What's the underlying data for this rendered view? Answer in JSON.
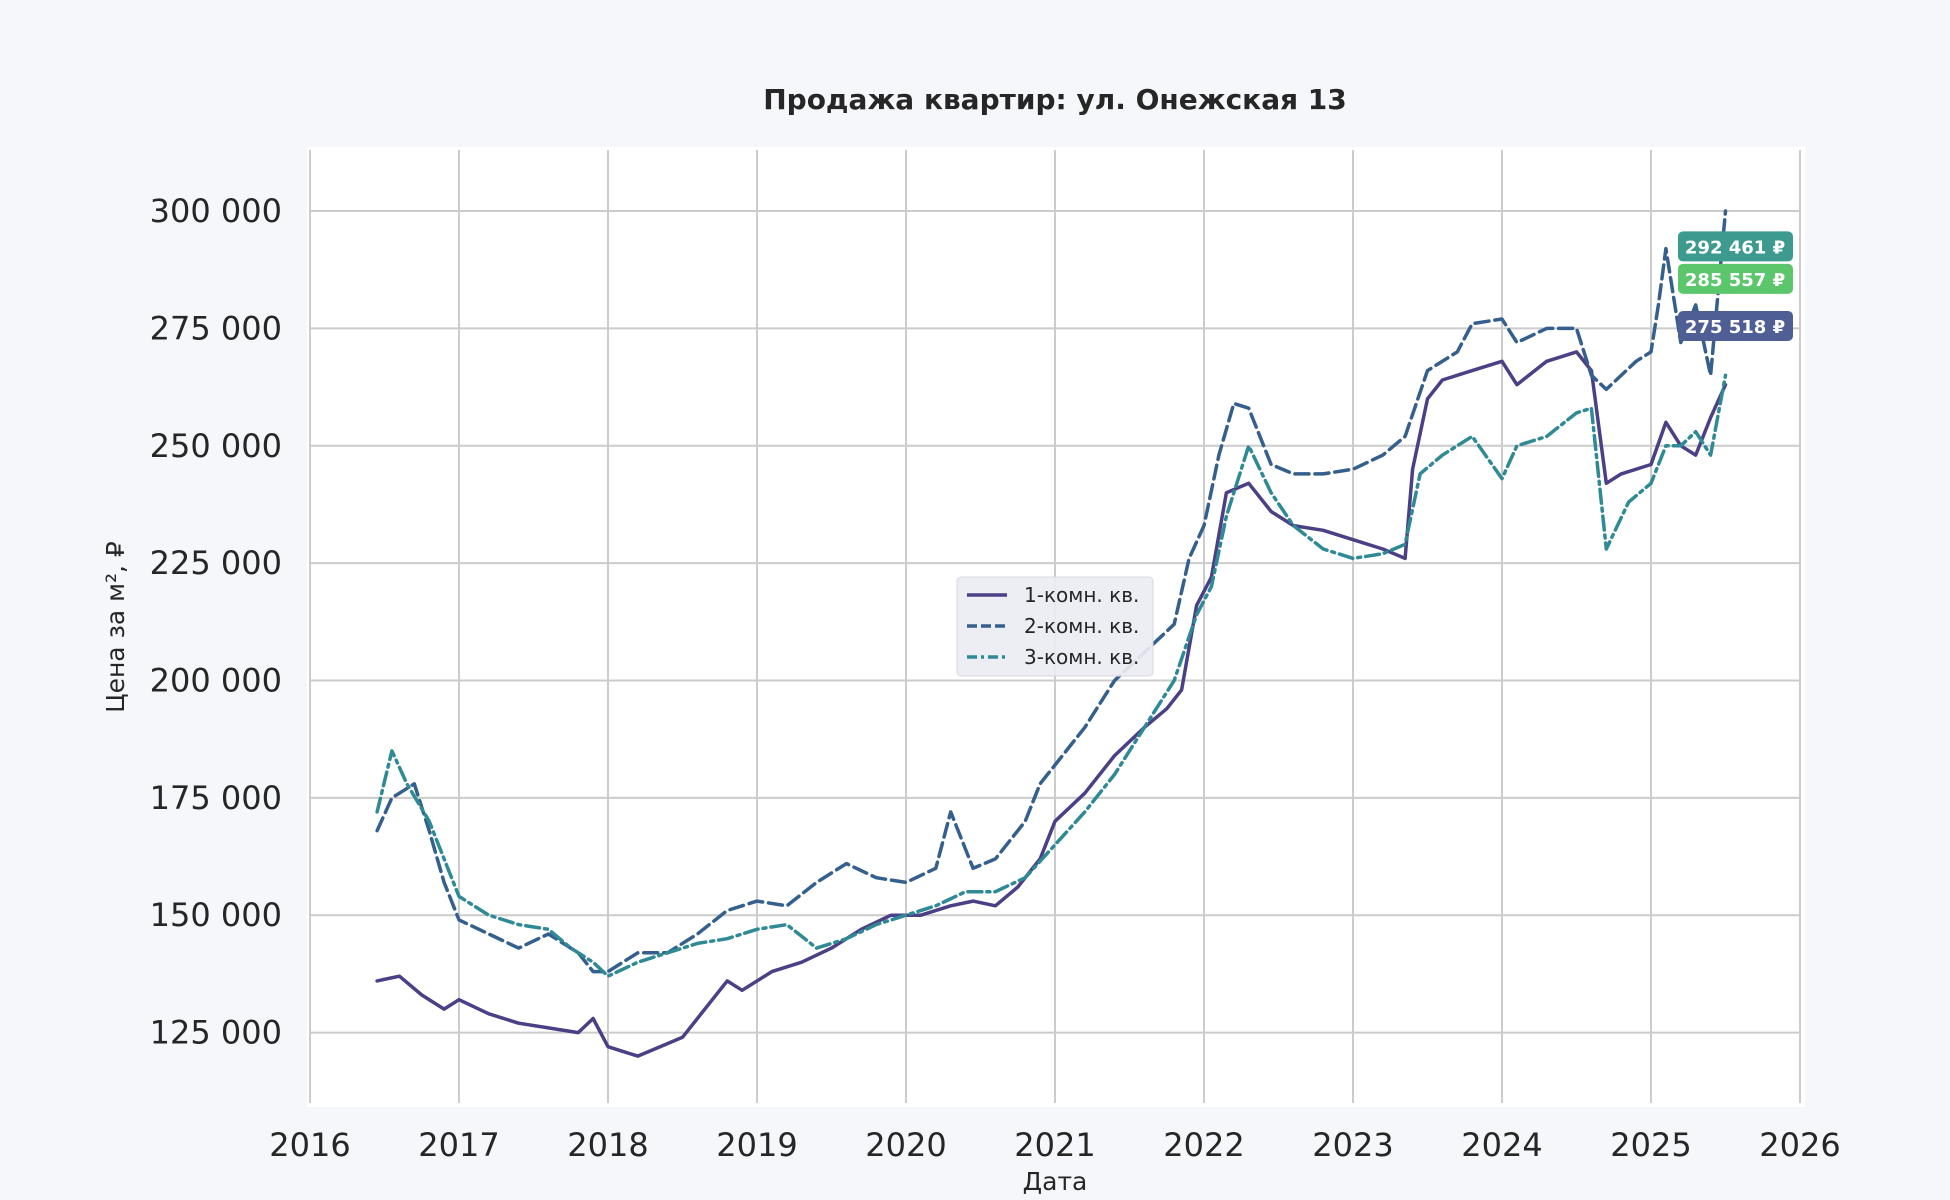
{
  "chart_data": {
    "type": "line",
    "title": "Продажа квартир: ул. Онежская 13",
    "xlabel": "Дата",
    "ylabel": "Цена за м², ₽",
    "xlim": [
      2016,
      2026
    ],
    "ylim": [
      110000,
      313000
    ],
    "x_ticks": [
      "2016",
      "2017",
      "2018",
      "2019",
      "2020",
      "2021",
      "2022",
      "2023",
      "2024",
      "2025",
      "2026"
    ],
    "y_ticks": [
      {
        "value": 125000,
        "label": "125 000"
      },
      {
        "value": 150000,
        "label": "150 000"
      },
      {
        "value": 175000,
        "label": "175 000"
      },
      {
        "value": 200000,
        "label": "200 000"
      },
      {
        "value": 225000,
        "label": "225 000"
      },
      {
        "value": 250000,
        "label": "250 000"
      },
      {
        "value": 275000,
        "label": "275 000"
      },
      {
        "value": 300000,
        "label": "300 000"
      }
    ],
    "grid": true,
    "legend_position": "center",
    "series": [
      {
        "name": "1-комн. кв.",
        "color": "#4b3f86",
        "dash": "solid",
        "x": [
          2016.45,
          2016.6,
          2016.75,
          2016.9,
          2017.0,
          2017.2,
          2017.4,
          2017.6,
          2017.8,
          2017.9,
          2018.0,
          2018.1,
          2018.2,
          2018.35,
          2018.5,
          2018.7,
          2018.8,
          2018.9,
          2019.1,
          2019.3,
          2019.5,
          2019.7,
          2019.9,
          2020.1,
          2020.3,
          2020.45,
          2020.6,
          2020.75,
          2020.9,
          2021.0,
          2021.2,
          2021.4,
          2021.6,
          2021.75,
          2021.85,
          2021.95,
          2022.05,
          2022.15,
          2022.3,
          2022.45,
          2022.6,
          2022.8,
          2023.0,
          2023.2,
          2023.35,
          2023.4,
          2023.5,
          2023.6,
          2023.8,
          2024.0,
          2024.1,
          2024.3,
          2024.5,
          2024.6,
          2024.7,
          2024.8,
          2025.0,
          2025.1,
          2025.2,
          2025.3,
          2025.4,
          2025.5
        ],
        "y": [
          136000,
          137000,
          133000,
          130000,
          132000,
          129000,
          127000,
          126000,
          125000,
          128000,
          122000,
          121000,
          120000,
          122000,
          124000,
          132000,
          136000,
          134000,
          138000,
          140000,
          143000,
          147000,
          150000,
          150000,
          152000,
          153000,
          152000,
          156000,
          162000,
          170000,
          176000,
          184000,
          190000,
          194000,
          198000,
          216000,
          222000,
          240000,
          242000,
          236000,
          233000,
          232000,
          230000,
          228000,
          226000,
          245000,
          260000,
          264000,
          266000,
          268000,
          263000,
          268000,
          270000,
          266000,
          242000,
          244000,
          246000,
          255000,
          250000,
          248000,
          256000,
          263000
        ]
      },
      {
        "name": "2-комн. кв.",
        "color": "#355f8c",
        "dash": "dashed",
        "x": [
          2016.45,
          2016.55,
          2016.7,
          2016.8,
          2016.9,
          2017.0,
          2017.2,
          2017.4,
          2017.6,
          2017.8,
          2017.9,
          2018.0,
          2018.2,
          2018.4,
          2018.6,
          2018.8,
          2019.0,
          2019.2,
          2019.4,
          2019.6,
          2019.8,
          2020.0,
          2020.2,
          2020.3,
          2020.45,
          2020.6,
          2020.8,
          2020.9,
          2021.0,
          2021.2,
          2021.4,
          2021.6,
          2021.8,
          2021.9,
          2022.0,
          2022.1,
          2022.2,
          2022.3,
          2022.45,
          2022.6,
          2022.8,
          2023.0,
          2023.2,
          2023.35,
          2023.5,
          2023.7,
          2023.8,
          2024.0,
          2024.1,
          2024.3,
          2024.5,
          2024.6,
          2024.7,
          2024.9,
          2025.0,
          2025.05,
          2025.1,
          2025.2,
          2025.3,
          2025.4,
          2025.5
        ],
        "y": [
          168000,
          175000,
          178000,
          168000,
          157000,
          149000,
          146000,
          143000,
          146000,
          142000,
          138000,
          138000,
          142000,
          142000,
          146000,
          151000,
          153000,
          152000,
          157000,
          161000,
          158000,
          157000,
          160000,
          172000,
          160000,
          162000,
          170000,
          178000,
          182000,
          190000,
          200000,
          206000,
          212000,
          226000,
          233000,
          248000,
          259000,
          258000,
          246000,
          244000,
          244000,
          245000,
          248000,
          252000,
          266000,
          270000,
          276000,
          277000,
          272000,
          275000,
          275000,
          265000,
          262000,
          268000,
          270000,
          280000,
          292000,
          272000,
          280000,
          265000,
          300000
        ]
      },
      {
        "name": "3-комн. кв.",
        "color": "#2f8a95",
        "dash": "dashdot",
        "x": [
          2016.45,
          2016.55,
          2016.65,
          2016.8,
          2016.9,
          2017.0,
          2017.2,
          2017.4,
          2017.6,
          2017.75,
          2017.9,
          2018.0,
          2018.2,
          2018.4,
          2018.6,
          2018.8,
          2019.0,
          2019.2,
          2019.4,
          2019.6,
          2019.8,
          2020.0,
          2020.2,
          2020.4,
          2020.6,
          2020.8,
          2021.0,
          2021.2,
          2021.4,
          2021.6,
          2021.8,
          2021.95,
          2022.05,
          2022.15,
          2022.3,
          2022.45,
          2022.6,
          2022.8,
          2023.0,
          2023.2,
          2023.35,
          2023.45,
          2023.6,
          2023.8,
          2024.0,
          2024.1,
          2024.3,
          2024.5,
          2024.6,
          2024.7,
          2024.85,
          2025.0,
          2025.1,
          2025.2,
          2025.3,
          2025.4,
          2025.5
        ],
        "y": [
          172000,
          185000,
          178000,
          170000,
          162000,
          154000,
          150000,
          148000,
          147000,
          143000,
          140000,
          137000,
          140000,
          142000,
          144000,
          145000,
          147000,
          148000,
          143000,
          145000,
          148000,
          150000,
          152000,
          155000,
          155000,
          158000,
          165000,
          172000,
          180000,
          190000,
          200000,
          214000,
          220000,
          235000,
          250000,
          240000,
          233000,
          228000,
          226000,
          227000,
          229000,
          244000,
          248000,
          252000,
          243000,
          250000,
          252000,
          257000,
          258000,
          228000,
          238000,
          242000,
          250000,
          250000,
          253000,
          248000,
          265000
        ]
      }
    ],
    "value_badges": [
      {
        "label": "292 461 ₽",
        "value": 292461,
        "color": "#3c9a8f"
      },
      {
        "label": "285 557 ₽",
        "value": 285557,
        "color": "#5cc66c"
      },
      {
        "label": "275 518 ₽",
        "value": 275518,
        "color": "#4f5f96"
      }
    ]
  }
}
